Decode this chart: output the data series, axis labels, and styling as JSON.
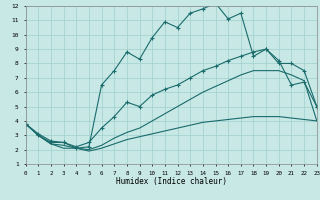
{
  "xlabel": "Humidex (Indice chaleur)",
  "x": [
    0,
    1,
    2,
    3,
    4,
    5,
    6,
    7,
    8,
    9,
    10,
    11,
    12,
    13,
    14,
    15,
    16,
    17,
    18,
    19,
    20,
    21,
    22,
    23
  ],
  "ylim": [
    1,
    12
  ],
  "xlim": [
    0,
    23
  ],
  "bg_color": "#c8e8e6",
  "grid_color": "#9dcfcc",
  "line_color": "#1a6b6b",
  "line1_y": [
    3.8,
    3.1,
    2.6,
    2.5,
    2.1,
    2.2,
    6.5,
    7.5,
    8.8,
    8.3,
    9.8,
    10.9,
    10.5,
    11.5,
    11.8,
    12.2,
    11.1,
    11.5,
    8.5,
    9.0,
    8.2,
    6.5,
    6.7,
    5.0
  ],
  "line2_y": [
    3.8,
    3.0,
    2.5,
    2.5,
    2.2,
    2.5,
    3.5,
    4.3,
    5.3,
    5.0,
    5.8,
    6.2,
    6.5,
    7.0,
    7.5,
    7.8,
    8.2,
    8.5,
    8.8,
    9.0,
    8.0,
    8.0,
    7.5,
    5.0
  ],
  "line3_y": [
    3.8,
    3.0,
    2.4,
    2.3,
    2.1,
    2.0,
    2.3,
    2.8,
    3.2,
    3.5,
    4.0,
    4.5,
    5.0,
    5.5,
    6.0,
    6.4,
    6.8,
    7.2,
    7.5,
    7.5,
    7.5,
    7.2,
    6.8,
    4.0
  ],
  "line4_y": [
    3.8,
    3.0,
    2.4,
    2.1,
    2.1,
    1.9,
    2.1,
    2.4,
    2.7,
    2.9,
    3.1,
    3.3,
    3.5,
    3.7,
    3.9,
    4.0,
    4.1,
    4.2,
    4.3,
    4.3,
    4.3,
    4.2,
    4.1,
    4.0
  ],
  "yticks": [
    1,
    2,
    3,
    4,
    5,
    6,
    7,
    8,
    9,
    10,
    11,
    12
  ],
  "xticks": [
    0,
    1,
    2,
    3,
    4,
    5,
    6,
    7,
    8,
    9,
    10,
    11,
    12,
    13,
    14,
    15,
    16,
    17,
    18,
    19,
    20,
    21,
    22,
    23
  ]
}
